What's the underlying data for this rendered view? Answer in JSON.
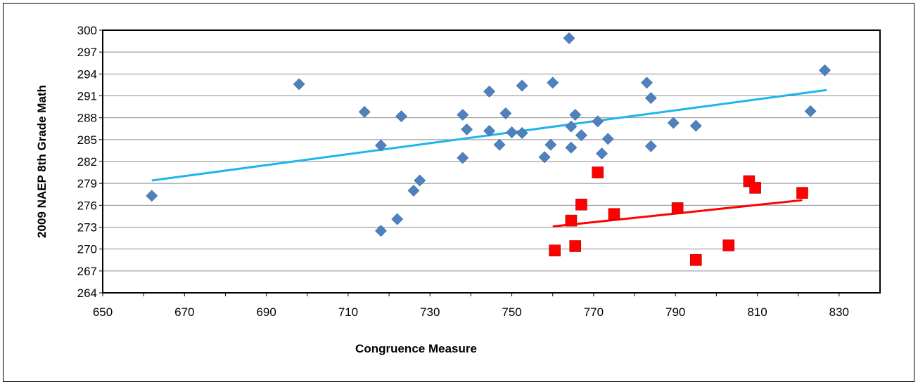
{
  "chart_data": {
    "type": "scatter",
    "title": "",
    "xlabel": "Congruence Measure",
    "ylabel": "2009 NAEP 8th Grade Math",
    "xlim": [
      650,
      840
    ],
    "ylim": [
      264,
      300
    ],
    "xticks": [
      650,
      670,
      690,
      710,
      730,
      750,
      770,
      790,
      810,
      830
    ],
    "yticks": [
      264,
      267,
      270,
      273,
      276,
      279,
      282,
      285,
      288,
      291,
      294,
      297,
      300
    ],
    "grid": "horizontal",
    "legend": "none",
    "series": [
      {
        "marker": "diamond",
        "color": "#4F81BD",
        "trendline_color": "#1EB4EC",
        "trendline": [
          [
            662,
            279.4
          ],
          [
            827,
            291.8
          ]
        ],
        "points": [
          [
            662,
            277.3
          ],
          [
            698,
            292.6
          ],
          [
            714,
            288.8
          ],
          [
            718,
            284.2
          ],
          [
            718,
            272.5
          ],
          [
            722,
            274.1
          ],
          [
            723,
            288.2
          ],
          [
            726,
            278.0
          ],
          [
            727.5,
            279.4
          ],
          [
            738,
            288.4
          ],
          [
            738,
            282.5
          ],
          [
            739,
            286.4
          ],
          [
            744.5,
            291.6
          ],
          [
            744.5,
            286.2
          ],
          [
            747,
            284.3
          ],
          [
            748.5,
            288.6
          ],
          [
            750,
            286.0
          ],
          [
            752.5,
            292.4
          ],
          [
            752.5,
            285.9
          ],
          [
            758,
            282.6
          ],
          [
            759.5,
            284.3
          ],
          [
            760,
            292.8
          ],
          [
            764,
            298.9
          ],
          [
            764.5,
            286.8
          ],
          [
            764.5,
            283.9
          ],
          [
            765.5,
            288.4
          ],
          [
            767,
            285.6
          ],
          [
            771,
            287.5
          ],
          [
            772,
            283.1
          ],
          [
            773.5,
            285.1
          ],
          [
            783,
            292.8
          ],
          [
            784,
            290.7
          ],
          [
            784,
            284.1
          ],
          [
            789.5,
            287.3
          ],
          [
            795,
            286.9
          ],
          [
            823,
            288.9
          ],
          [
            826.5,
            294.5
          ]
        ]
      },
      {
        "marker": "square",
        "color": "#FF0000",
        "trendline_color": "#FF0000",
        "trendline": [
          [
            760,
            273.1
          ],
          [
            821,
            276.7
          ]
        ],
        "points": [
          [
            760.5,
            269.8
          ],
          [
            764.5,
            273.9
          ],
          [
            765.5,
            270.4
          ],
          [
            767,
            276.1
          ],
          [
            771,
            280.5
          ],
          [
            775,
            274.8
          ],
          [
            790.5,
            275.6
          ],
          [
            795,
            268.5
          ],
          [
            803,
            270.5
          ],
          [
            808,
            279.3
          ],
          [
            809.5,
            278.4
          ],
          [
            821,
            277.7
          ]
        ]
      }
    ]
  }
}
